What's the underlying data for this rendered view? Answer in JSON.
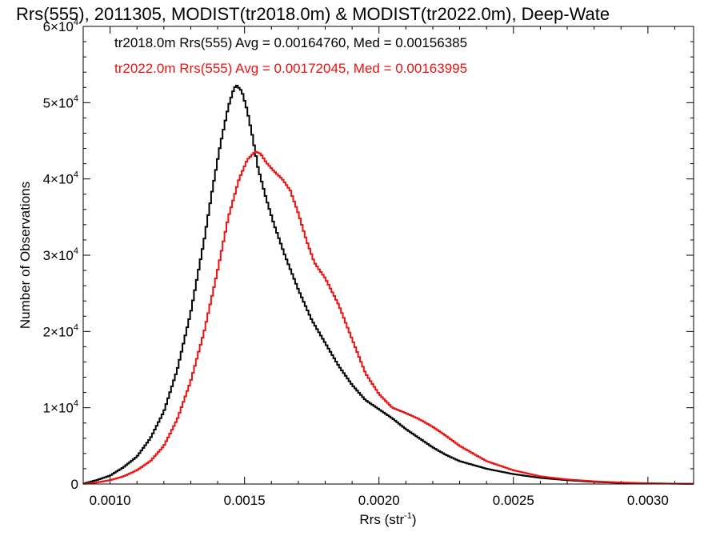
{
  "chart_data": {
    "type": "line",
    "title": "Rrs(555), 2011305, MODIST(tr2018.0m) & MODIST(tr2022.0m), Deep-Wate",
    "xlabel": "Rrs (str",
    "xlabel_sup": "-1",
    "xlabel_tail": ")",
    "ylabel": "Number of Observations",
    "xlim": [
      0.0009,
      0.00317
    ],
    "ylim": [
      0,
      60000
    ],
    "x_ticks": [
      0.001,
      0.0015,
      0.002,
      0.0025,
      0.003
    ],
    "x_tick_labels": [
      "0.0010",
      "0.0015",
      "0.0020",
      "0.0025",
      "0.0030"
    ],
    "y_ticks": [
      0,
      10000,
      20000,
      30000,
      40000,
      50000,
      60000
    ],
    "y_tick_labels": [
      {
        "base": "0",
        "exp": ""
      },
      {
        "base": "1×10",
        "exp": "4"
      },
      {
        "base": "2×10",
        "exp": "4"
      },
      {
        "base": "3×10",
        "exp": "4"
      },
      {
        "base": "4×10",
        "exp": "4"
      },
      {
        "base": "5×10",
        "exp": "4"
      },
      {
        "base": "6×10",
        "exp": "4"
      }
    ],
    "step": true,
    "grid": false,
    "annotations": [
      {
        "text": "tr2018.0m Rrs(555) Avg = 0.00164760, Med = 0.00156385",
        "color": "#000000"
      },
      {
        "text": "tr2022.0m Rrs(555) Avg = 0.00172045, Med = 0.00163995",
        "color": "#ee1111"
      }
    ],
    "series": [
      {
        "color": "#000000",
        "points": [
          [
            0.0009,
            50
          ],
          [
            0.00095,
            500
          ],
          [
            0.001,
            1100
          ],
          [
            0.00105,
            2200
          ],
          [
            0.0011,
            3600
          ],
          [
            0.00115,
            6000
          ],
          [
            0.0012,
            9500
          ],
          [
            0.00125,
            15000
          ],
          [
            0.0013,
            22500
          ],
          [
            0.00135,
            32000
          ],
          [
            0.00138,
            38500
          ],
          [
            0.00141,
            44500
          ],
          [
            0.00144,
            49500
          ],
          [
            0.00146,
            51800
          ],
          [
            0.00147,
            52300
          ],
          [
            0.00149,
            51500
          ],
          [
            0.00151,
            49000
          ],
          [
            0.00153,
            45500
          ],
          [
            0.00155,
            41500
          ],
          [
            0.00158,
            37500
          ],
          [
            0.00161,
            34000
          ],
          [
            0.00165,
            30000
          ],
          [
            0.0017,
            25500
          ],
          [
            0.00175,
            21500
          ],
          [
            0.0018,
            18500
          ],
          [
            0.00185,
            15500
          ],
          [
            0.0019,
            13000
          ],
          [
            0.00195,
            11000
          ],
          [
            0.002,
            9800
          ],
          [
            0.00205,
            8600
          ],
          [
            0.0021,
            7200
          ],
          [
            0.00215,
            6000
          ],
          [
            0.0022,
            4800
          ],
          [
            0.00225,
            3800
          ],
          [
            0.0023,
            3000
          ],
          [
            0.0024,
            2000
          ],
          [
            0.0025,
            1300
          ],
          [
            0.0026,
            800
          ],
          [
            0.0027,
            500
          ],
          [
            0.0028,
            280
          ],
          [
            0.0029,
            150
          ],
          [
            0.003,
            80
          ],
          [
            0.0031,
            40
          ],
          [
            0.00317,
            20
          ]
        ]
      },
      {
        "color": "#ee1111",
        "points": [
          [
            0.0009,
            20
          ],
          [
            0.00095,
            200
          ],
          [
            0.001,
            500
          ],
          [
            0.00105,
            1000
          ],
          [
            0.0011,
            1800
          ],
          [
            0.00115,
            3000
          ],
          [
            0.0012,
            5000
          ],
          [
            0.00125,
            8500
          ],
          [
            0.0013,
            13500
          ],
          [
            0.00135,
            20000
          ],
          [
            0.0014,
            28000
          ],
          [
            0.00144,
            35000
          ],
          [
            0.00148,
            40000
          ],
          [
            0.00151,
            42500
          ],
          [
            0.00154,
            43600
          ],
          [
            0.00156,
            43300
          ],
          [
            0.00158,
            42200
          ],
          [
            0.00161,
            41000
          ],
          [
            0.00164,
            40000
          ],
          [
            0.00167,
            38500
          ],
          [
            0.0017,
            35500
          ],
          [
            0.00173,
            32000
          ],
          [
            0.00176,
            29000
          ],
          [
            0.0018,
            27000
          ],
          [
            0.00185,
            23500
          ],
          [
            0.0019,
            19000
          ],
          [
            0.00195,
            14500
          ],
          [
            0.002,
            11800
          ],
          [
            0.00205,
            10000
          ],
          [
            0.0021,
            9300
          ],
          [
            0.00215,
            8500
          ],
          [
            0.0022,
            7500
          ],
          [
            0.00225,
            6300
          ],
          [
            0.0023,
            5000
          ],
          [
            0.00235,
            4000
          ],
          [
            0.0024,
            3000
          ],
          [
            0.0025,
            1800
          ],
          [
            0.0026,
            1000
          ],
          [
            0.0027,
            600
          ],
          [
            0.0028,
            350
          ],
          [
            0.0029,
            200
          ],
          [
            0.003,
            100
          ],
          [
            0.0031,
            50
          ],
          [
            0.00317,
            25
          ]
        ]
      }
    ]
  }
}
